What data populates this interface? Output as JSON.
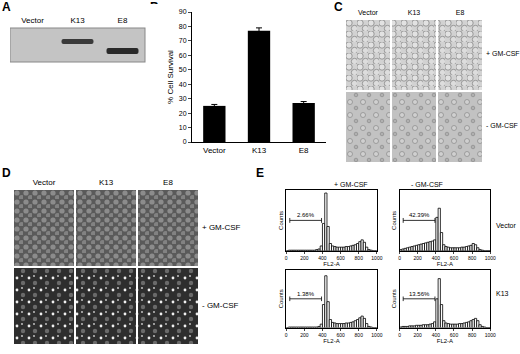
{
  "figure": {
    "panel_labels": [
      "A",
      "B",
      "C",
      "D",
      "E"
    ],
    "blot": {
      "lanes": [
        "Vector",
        "K13",
        "E8"
      ]
    },
    "micrographs_C": {
      "columns": [
        "Vector",
        "K13",
        "E8"
      ],
      "rows": [
        "+ GM-CSF",
        "- GM-CSF"
      ]
    },
    "micrographs_D": {
      "columns": [
        "Vector",
        "K13",
        "E8"
      ],
      "rows": [
        "+ GM-CSF",
        "- GM-CSF"
      ]
    },
    "panel_E": {
      "columns": [
        "+ GM-CSF",
        "- GM-CSF"
      ],
      "rows": [
        "Vector",
        "K13"
      ]
    }
  },
  "chart_data": [
    {
      "type": "bar",
      "y_label": "% Cell Survival",
      "categories": [
        "Vector",
        "K13",
        "E8"
      ],
      "values": [
        25,
        77,
        27
      ],
      "errors": [
        1,
        2,
        1
      ],
      "color": "#000000",
      "ylim": [
        0,
        90
      ],
      "yticks": [
        0,
        10,
        20,
        30,
        40,
        50,
        60,
        70,
        80,
        90
      ]
    },
    {
      "type": "histogram",
      "x_label": "FL2-A",
      "y_label": "Counts",
      "bins": [
        0,
        25,
        50,
        75,
        100,
        125,
        150,
        175,
        200,
        225,
        250,
        275,
        300,
        325,
        350,
        375,
        400,
        425,
        450,
        475,
        500,
        525,
        550,
        575,
        600,
        625,
        650,
        675,
        700,
        725,
        750,
        775,
        800,
        825,
        850,
        875,
        900,
        925,
        950,
        975,
        1000
      ],
      "counts": [
        0,
        1,
        1,
        1,
        1,
        1,
        1,
        1,
        1,
        1,
        1,
        1,
        1,
        2,
        3,
        8,
        45,
        95,
        40,
        12,
        8,
        7,
        6,
        6,
        6,
        6,
        7,
        7,
        8,
        9,
        10,
        12,
        15,
        18,
        14,
        6,
        2,
        1,
        0,
        0
      ],
      "xlim": [
        0,
        1000
      ],
      "xticks": [
        0,
        200,
        400,
        600,
        800,
        1000
      ],
      "ylim": [
        0,
        100
      ],
      "tick_labels": "x",
      "annotations": [
        {
          "x_range": [
            40,
            390
          ],
          "text": "2.66%"
        }
      ]
    },
    {
      "type": "histogram",
      "x_label": "FL2-A",
      "y_label": "Counts",
      "bins": [
        0,
        25,
        50,
        75,
        100,
        125,
        150,
        175,
        200,
        225,
        250,
        275,
        300,
        325,
        350,
        375,
        400,
        425,
        450,
        475,
        500,
        525,
        550,
        575,
        600,
        625,
        650,
        675,
        700,
        725,
        750,
        775,
        800,
        825,
        850,
        875,
        900,
        925,
        950,
        975,
        1000
      ],
      "counts": [
        2,
        3,
        4,
        5,
        6,
        7,
        8,
        9,
        10,
        11,
        12,
        13,
        14,
        15,
        16,
        18,
        55,
        70,
        30,
        10,
        7,
        6,
        5,
        5,
        5,
        5,
        5,
        6,
        6,
        7,
        8,
        9,
        12,
        10,
        5,
        2,
        1,
        0,
        0,
        0
      ],
      "xlim": [
        0,
        1000
      ],
      "xticks": [
        0,
        200,
        400,
        600,
        800,
        1000
      ],
      "ylim": [
        0,
        100
      ],
      "tick_labels": "x",
      "annotations": [
        {
          "x_range": [
            40,
            390
          ],
          "text": "42.39%"
        }
      ]
    },
    {
      "type": "histogram",
      "x_label": "FL2-A",
      "y_label": "Counts",
      "bins": [
        0,
        25,
        50,
        75,
        100,
        125,
        150,
        175,
        200,
        225,
        250,
        275,
        300,
        325,
        350,
        375,
        400,
        425,
        450,
        475,
        500,
        525,
        550,
        575,
        600,
        625,
        650,
        675,
        700,
        725,
        750,
        775,
        800,
        825,
        850,
        875,
        900,
        925,
        950,
        975,
        1000
      ],
      "counts": [
        0,
        1,
        1,
        1,
        1,
        1,
        1,
        1,
        1,
        1,
        1,
        1,
        1,
        1,
        2,
        6,
        40,
        90,
        45,
        14,
        9,
        8,
        7,
        7,
        7,
        7,
        8,
        8,
        9,
        10,
        12,
        14,
        17,
        20,
        16,
        7,
        2,
        1,
        0,
        0
      ],
      "xlim": [
        0,
        1000
      ],
      "xticks": [
        0,
        200,
        400,
        600,
        800,
        1000
      ],
      "ylim": [
        0,
        100
      ],
      "tick_labels": "x",
      "annotations": [
        {
          "x_range": [
            40,
            390
          ],
          "text": "1.38%"
        }
      ]
    },
    {
      "type": "histogram",
      "x_label": "FL2-A",
      "y_label": "Counts",
      "bins": [
        0,
        25,
        50,
        75,
        100,
        125,
        150,
        175,
        200,
        225,
        250,
        275,
        300,
        325,
        350,
        375,
        400,
        425,
        450,
        475,
        500,
        525,
        550,
        575,
        600,
        625,
        650,
        675,
        700,
        725,
        750,
        775,
        800,
        825,
        850,
        875,
        900,
        925,
        950,
        975,
        1000
      ],
      "counts": [
        1,
        2,
        2,
        2,
        3,
        3,
        3,
        4,
        4,
        4,
        5,
        5,
        5,
        6,
        7,
        10,
        50,
        85,
        40,
        12,
        8,
        7,
        6,
        6,
        6,
        6,
        7,
        7,
        8,
        9,
        10,
        12,
        14,
        16,
        12,
        5,
        2,
        1,
        0,
        0
      ],
      "xlim": [
        0,
        1000
      ],
      "xticks": [
        0,
        200,
        400,
        600,
        800,
        1000
      ],
      "ylim": [
        0,
        100
      ],
      "tick_labels": "x",
      "annotations": [
        {
          "x_range": [
            40,
            390
          ],
          "text": "13.56%"
        }
      ]
    }
  ]
}
